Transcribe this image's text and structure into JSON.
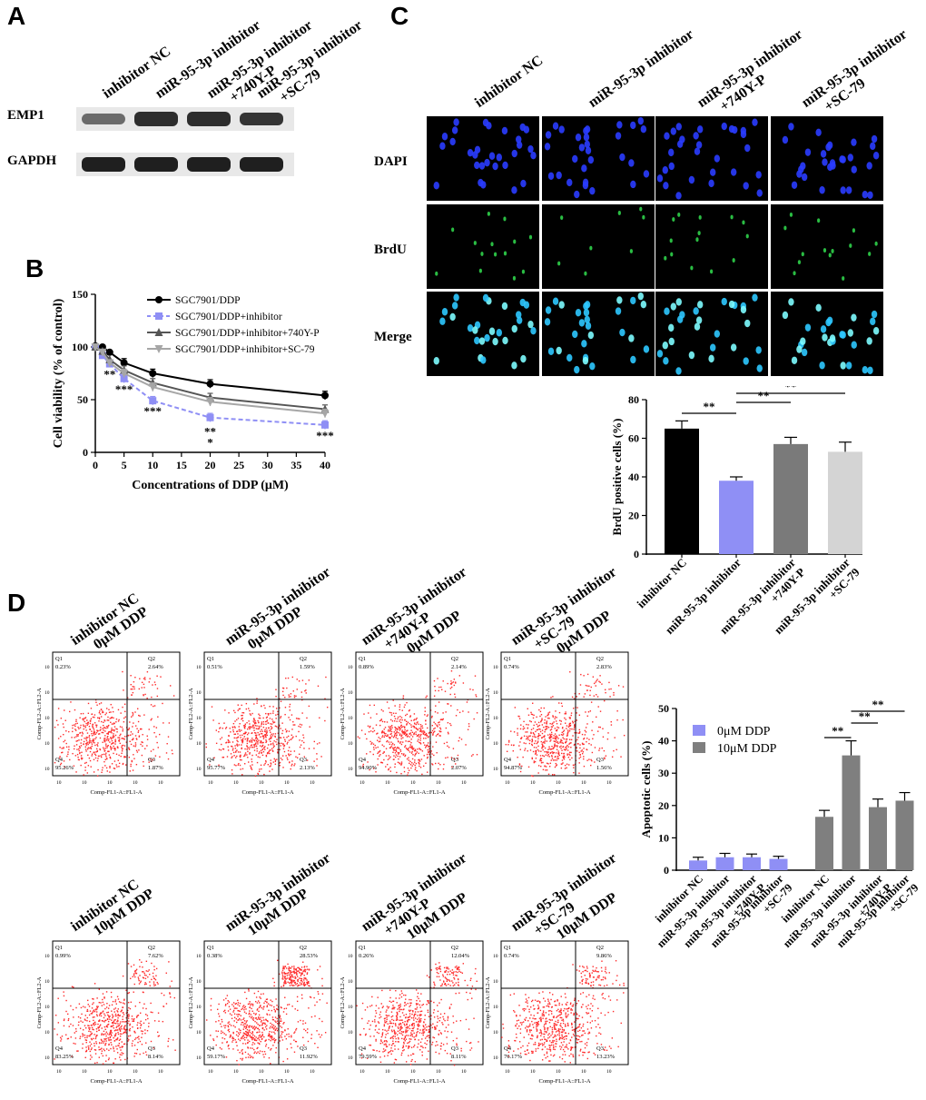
{
  "panels": {
    "a": "A",
    "b": "B",
    "c": "C",
    "d": "D"
  },
  "western_blot": {
    "lanes": [
      [
        "inhibitor NC"
      ],
      [
        "miR-95-3p inhibitor"
      ],
      [
        "miR-95-3p inhibitor",
        "+740Y-P"
      ],
      [
        "miR-95-3p inhibitor",
        "+SC-79"
      ]
    ],
    "rows": [
      "EMP1",
      "GAPDH"
    ],
    "emp1_intensity": [
      0.45,
      0.9,
      0.9,
      0.85
    ],
    "gapdh_intensity": [
      1,
      1,
      1,
      1
    ]
  },
  "microscopy": {
    "columns": [
      [
        "inhibitor NC"
      ],
      [
        "miR-95-3p inhibitor"
      ],
      [
        "miR-95-3p inhibitor",
        "+740Y-P"
      ],
      [
        "miR-95-3p inhibitor",
        "+SC-79"
      ]
    ],
    "rows": [
      "DAPI",
      "BrdU",
      "Merge"
    ],
    "colors": {
      "dapi": "#2a3cff",
      "brdu": "#2fd14a",
      "merge": "#2ec8ff"
    }
  },
  "flow": {
    "col_labels": [
      [
        "inhibitor NC"
      ],
      [
        "miR-95-3p inhibitor"
      ],
      [
        "miR-95-3p inhibitor",
        "+740Y-P"
      ],
      [
        "miR-95-3p inhibitor",
        "+SC-79"
      ]
    ],
    "dose_labels": [
      "0μM DDP",
      "10μM DDP"
    ],
    "x_axis": "Comp-FL1-A::FL1-A",
    "y_axis": "Comp-FL2-A::FL2-A",
    "quadrant_names": [
      "Q1",
      "Q2",
      "Q3",
      "Q4"
    ],
    "plots": [
      {
        "q1": "0.23%",
        "q2": "2.64%",
        "q3": "1.87%",
        "q4": "95.26%"
      },
      {
        "q1": "0.51%",
        "q2": "1.59%",
        "q3": "2.13%",
        "q4": "95.77%"
      },
      {
        "q1": "0.89%",
        "q2": "2.14%",
        "q3": "2.07%",
        "q4": "94.90%"
      },
      {
        "q1": "0.74%",
        "q2": "2.83%",
        "q3": "1.56%",
        "q4": "94.87%"
      },
      {
        "q1": "0.99%",
        "q2": "7.62%",
        "q3": "8.14%",
        "q4": "83.25%"
      },
      {
        "q1": "0.38%",
        "q2": "28.53%",
        "q3": "11.92%",
        "q4": "59.17%"
      },
      {
        "q1": "0.26%",
        "q2": "12.04%",
        "q3": "8.11%",
        "q4": "79.59%"
      },
      {
        "q1": "0.74%",
        "q2": "9.86%",
        "q3": "13.23%",
        "q4": "76.17%"
      }
    ]
  },
  "chart_data": [
    {
      "type": "line",
      "xlabel": "Concentrations of DDP (μM)",
      "ylabel": "Cell viability (% of control)",
      "xlim": [
        0,
        40
      ],
      "ylim": [
        0,
        150
      ],
      "xticks": [
        0,
        5,
        10,
        15,
        20,
        25,
        30,
        35,
        40
      ],
      "yticks": [
        0,
        50,
        100,
        150
      ],
      "x": [
        0,
        1.25,
        2.5,
        5,
        10,
        20,
        40
      ],
      "legend_position": "top-right",
      "series": [
        {
          "name": "SGC7901/DDP",
          "values": [
            101,
            100,
            95,
            85,
            75,
            65,
            54
          ],
          "color": "#000000",
          "marker": "circle",
          "dash": false
        },
        {
          "name": "SGC7901/DDP+inhibitor",
          "values": [
            100,
            92,
            84,
            70,
            49,
            33,
            26
          ],
          "color": "#8f8ff5",
          "marker": "square",
          "dash": true
        },
        {
          "name": "SGC7901/DDP+inhibitor+740Y-P",
          "values": [
            100,
            96,
            88,
            78,
            66,
            52,
            41
          ],
          "color": "#555555",
          "marker": "triangle-up",
          "dash": false
        },
        {
          "name": "SGC7901/DDP+inhibitor+SC-79",
          "values": [
            100,
            95,
            85,
            75,
            62,
            48,
            37
          ],
          "color": "#a6a6a6",
          "marker": "triangle-down",
          "dash": false
        }
      ],
      "annotations": [
        {
          "x": 2.5,
          "text": "**"
        },
        {
          "x": 5,
          "text": "***"
        },
        {
          "x": 10,
          "text": "***"
        },
        {
          "x": 20,
          "text": "**"
        },
        {
          "x": 20,
          "text": "*"
        },
        {
          "x": 40,
          "text": "***"
        }
      ]
    },
    {
      "type": "bar",
      "ylabel": "BrdU positive cells (%)",
      "ylim": [
        0,
        80
      ],
      "yticks": [
        0,
        20,
        40,
        60,
        80
      ],
      "categories": [
        "inhibitor NC",
        "miR-95-3p inhibitor",
        "miR-95-3p inhibitor+740Y-P",
        "miR-95-3p inhibitor+SC-79"
      ],
      "category_lines": [
        [
          "inhibitor NC"
        ],
        [
          "miR-95-3p inhibitor"
        ],
        [
          "miR-95-3p inhibitor",
          "+740Y-P"
        ],
        [
          "miR-95-3p inhibitor",
          "+SC-79"
        ]
      ],
      "values": [
        65,
        38,
        57,
        53
      ],
      "errors": [
        4,
        2,
        3.5,
        5
      ],
      "colors": [
        "#000000",
        "#8f8ff5",
        "#7a7a7a",
        "#d4d4d4"
      ],
      "significance": [
        {
          "from": 0,
          "to": 1,
          "text": "**"
        },
        {
          "from": 1,
          "to": 2,
          "text": "**"
        },
        {
          "from": 1,
          "to": 3,
          "text": "**"
        }
      ]
    },
    {
      "type": "bar",
      "ylabel": "Apoptotic cells (%)",
      "ylim": [
        0,
        50
      ],
      "yticks": [
        0,
        10,
        20,
        30,
        40,
        50
      ],
      "categories": [
        "inhibitor NC",
        "miR-95-3p inhibitor",
        "miR-95-3p inhibitor+740Y-P",
        "miR-95-3p inhibitor+SC-79"
      ],
      "category_lines": [
        [
          "inhibitor NC"
        ],
        [
          "miR-95-3p inhibitor"
        ],
        [
          "miR-95-3p inhibitor",
          "+740Y-P"
        ],
        [
          "miR-95-3p inhibitor",
          "+SC-79"
        ]
      ],
      "legend_position": "top-left",
      "series": [
        {
          "name": "0μM DDP",
          "values": [
            3,
            4,
            4,
            3.5
          ],
          "errors": [
            1,
            1.2,
            1,
            0.8
          ],
          "color": "#8f8ff5"
        },
        {
          "name": "10μM DDP",
          "values": [
            16.5,
            35.5,
            19.5,
            21.5
          ],
          "errors": [
            2,
            4.5,
            2.5,
            2.5
          ],
          "color": "#7f7f7f"
        }
      ],
      "significance": [
        {
          "from": 4,
          "to": 5,
          "text": "**"
        },
        {
          "from": 5,
          "to": 6,
          "text": "**"
        },
        {
          "from": 5,
          "to": 7,
          "text": "**"
        }
      ]
    }
  ]
}
